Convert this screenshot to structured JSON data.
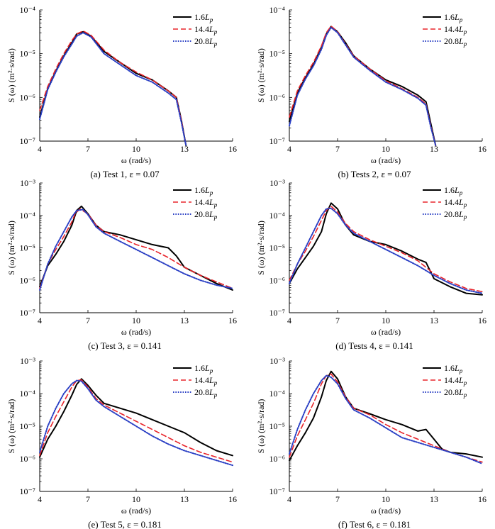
{
  "figure": {
    "axis_labels": {
      "ylabel": "S (ω) (m²·s/rad)",
      "xlabel": "ω (rad/s)"
    },
    "series_styles": [
      {
        "name": "1.6Lp",
        "color": "#000000",
        "dash": "",
        "width": 2.0
      },
      {
        "name": "14.4Lp",
        "color": "#e8232a",
        "dash": "7,4",
        "width": 1.6
      },
      {
        "name": "20.8Lp",
        "color": "#2a3fc4",
        "dash": "1.6,1.8",
        "width": 2.0
      }
    ]
  },
  "chart_data": [
    {
      "type": "line",
      "title": "(a) Test 1, ε = 0.07",
      "xlabel": "ω (rad/s)",
      "ylabel": "S (ω) (m²·s/rad)",
      "x_ticks": [
        4,
        7,
        10,
        13,
        16
      ],
      "x_tick_labels": [
        "4",
        "7",
        "10",
        "13",
        "16"
      ],
      "xlim": [
        4,
        16
      ],
      "ylim_exp": [
        -7,
        -4
      ],
      "y_tick_labels": [
        "10⁻⁷",
        "10⁻⁶",
        "10⁻⁵",
        "10⁻⁴"
      ],
      "legend": [
        "1.6Lp",
        "14.4Lp",
        "20.8Lp"
      ],
      "series": [
        {
          "name": "1.6Lp",
          "x": [
            4,
            4.5,
            5,
            5.5,
            6,
            6.3,
            6.7,
            7.2,
            8,
            9,
            10,
            11,
            12,
            12.5,
            12.8,
            13.1
          ],
          "log10_y": [
            -6.45,
            -5.8,
            -5.4,
            -5.05,
            -4.75,
            -4.55,
            -4.5,
            -4.6,
            -4.95,
            -5.2,
            -5.45,
            -5.6,
            -5.85,
            -6.0,
            -6.5,
            -7.1
          ]
        },
        {
          "name": "14.4Lp",
          "x": [
            4,
            4.5,
            5,
            5.5,
            6,
            6.3,
            6.7,
            7.2,
            8,
            9,
            10,
            11,
            12,
            12.5,
            12.8,
            13.1
          ],
          "log10_y": [
            -6.3,
            -5.75,
            -5.35,
            -5.0,
            -4.7,
            -4.55,
            -4.48,
            -4.58,
            -4.92,
            -5.2,
            -5.42,
            -5.6,
            -5.85,
            -6.0,
            -6.5,
            -7.1
          ]
        },
        {
          "name": "20.8Lp",
          "x": [
            4,
            4.5,
            5,
            5.5,
            6,
            6.3,
            6.7,
            7.2,
            8,
            9,
            10,
            11,
            12,
            12.5,
            12.8,
            13.1
          ],
          "log10_y": [
            -6.5,
            -5.82,
            -5.42,
            -5.07,
            -4.78,
            -4.6,
            -4.52,
            -4.62,
            -5.0,
            -5.25,
            -5.5,
            -5.65,
            -5.9,
            -6.05,
            -6.55,
            -7.1
          ]
        }
      ]
    },
    {
      "type": "line",
      "title": "(b) Tests 2, ε = 0.07",
      "xlabel": "ω (rad/s)",
      "ylabel": "S (ω) (m²·s/rad)",
      "x_ticks": [
        4,
        7,
        10,
        13,
        16
      ],
      "x_tick_labels": [
        "4",
        "7",
        "10",
        "13",
        "16"
      ],
      "xlim": [
        4,
        16
      ],
      "ylim_exp": [
        -7,
        -4
      ],
      "y_tick_labels": [
        "10⁻⁷",
        "10⁻⁶",
        "10⁻⁵",
        "10⁻⁴"
      ],
      "legend": [
        "1.6Lp",
        "14.4Lp",
        "20.8Lp"
      ],
      "series": [
        {
          "name": "1.6Lp",
          "x": [
            4,
            4.5,
            5,
            5.5,
            6,
            6.3,
            6.6,
            7,
            7.5,
            8,
            9,
            10,
            11,
            12,
            12.5,
            12.8,
            13.1
          ],
          "log10_y": [
            -6.55,
            -5.9,
            -5.55,
            -5.25,
            -4.85,
            -4.55,
            -4.38,
            -4.5,
            -4.75,
            -5.05,
            -5.35,
            -5.6,
            -5.75,
            -5.95,
            -6.1,
            -6.6,
            -7.1
          ]
        },
        {
          "name": "14.4Lp",
          "x": [
            4,
            4.5,
            5,
            5.5,
            6,
            6.3,
            6.6,
            7,
            7.5,
            8,
            9,
            10,
            11,
            12,
            12.5,
            12.8,
            13.1
          ],
          "log10_y": [
            -6.45,
            -5.85,
            -5.5,
            -5.2,
            -4.82,
            -4.52,
            -4.37,
            -4.5,
            -4.78,
            -5.05,
            -5.35,
            -5.62,
            -5.8,
            -6.0,
            -6.15,
            -6.65,
            -7.1
          ]
        },
        {
          "name": "20.8Lp",
          "x": [
            4,
            4.5,
            5,
            5.5,
            6,
            6.3,
            6.6,
            7,
            7.5,
            8,
            9,
            10,
            11,
            12,
            12.5,
            12.8,
            13.1
          ],
          "log10_y": [
            -6.65,
            -5.95,
            -5.58,
            -5.28,
            -4.9,
            -4.58,
            -4.4,
            -4.52,
            -4.8,
            -5.08,
            -5.38,
            -5.65,
            -5.82,
            -6.02,
            -6.18,
            -6.68,
            -7.1
          ]
        }
      ]
    },
    {
      "type": "line",
      "title": "(c) Test 3, ε = 0.141",
      "xlabel": "ω (rad/s)",
      "ylabel": "S (ω) (m²·s/rad)",
      "x_ticks": [
        4,
        7,
        10,
        13,
        16
      ],
      "x_tick_labels": [
        "4",
        "7",
        "10",
        "13",
        "16"
      ],
      "xlim": [
        4,
        16
      ],
      "ylim_exp": [
        -7,
        -3
      ],
      "y_tick_labels": [
        "10⁻⁷",
        "10⁻⁶",
        "10⁻⁵",
        "10⁻⁴",
        "10⁻³"
      ],
      "legend": [
        "1.6Lp",
        "14.4Lp",
        "20.8Lp"
      ],
      "series": [
        {
          "name": "1.6Lp",
          "x": [
            4,
            4.5,
            5,
            5.5,
            6,
            6.3,
            6.6,
            7,
            7.5,
            8,
            9,
            10,
            11,
            12,
            12.5,
            13,
            14,
            15,
            16
          ],
          "log10_y": [
            -6.2,
            -5.55,
            -5.2,
            -4.8,
            -4.3,
            -3.85,
            -3.72,
            -3.95,
            -4.3,
            -4.5,
            -4.6,
            -4.75,
            -4.9,
            -5.0,
            -5.25,
            -5.6,
            -5.85,
            -6.1,
            -6.3
          ]
        },
        {
          "name": "14.4Lp",
          "x": [
            4,
            4.5,
            5,
            5.5,
            6,
            6.2,
            6.5,
            7,
            7.5,
            8,
            9,
            10,
            11,
            12,
            13,
            14,
            15,
            16
          ],
          "log10_y": [
            -6.25,
            -5.5,
            -5.05,
            -4.65,
            -4.2,
            -3.95,
            -3.8,
            -3.95,
            -4.3,
            -4.5,
            -4.68,
            -4.9,
            -5.05,
            -5.3,
            -5.6,
            -5.85,
            -6.05,
            -6.25
          ]
        },
        {
          "name": "20.8Lp",
          "x": [
            4,
            4.5,
            5,
            5.5,
            6,
            6.3,
            6.7,
            7,
            7.5,
            8,
            9,
            10,
            11,
            12,
            13,
            14,
            15,
            16
          ],
          "log10_y": [
            -6.3,
            -5.5,
            -4.95,
            -4.5,
            -4.05,
            -3.85,
            -3.82,
            -3.98,
            -4.35,
            -4.55,
            -4.8,
            -5.05,
            -5.3,
            -5.55,
            -5.8,
            -6.0,
            -6.15,
            -6.25
          ]
        }
      ]
    },
    {
      "type": "line",
      "title": "(d) Tests 4, ε = 0.141",
      "xlabel": "ω (rad/s)",
      "ylabel": "S (ω) (m²·s/rad)",
      "x_ticks": [
        4,
        7,
        10,
        13,
        16
      ],
      "x_tick_labels": [
        "4",
        "7",
        "10",
        "13",
        "16"
      ],
      "xlim": [
        4,
        16
      ],
      "ylim_exp": [
        -7,
        -3
      ],
      "y_tick_labels": [
        "10⁻⁷",
        "10⁻⁶",
        "10⁻⁵",
        "10⁻⁴",
        "10⁻³"
      ],
      "legend": [
        "1.6Lp",
        "14.4Lp",
        "20.8Lp"
      ],
      "series": [
        {
          "name": "1.6Lp",
          "x": [
            4,
            4.5,
            5,
            5.5,
            6,
            6.3,
            6.6,
            7,
            7.5,
            8,
            9,
            10,
            11,
            12,
            12.5,
            13,
            14,
            15,
            16
          ],
          "log10_y": [
            -6.1,
            -5.65,
            -5.3,
            -4.95,
            -4.5,
            -3.95,
            -3.62,
            -3.8,
            -4.3,
            -4.6,
            -4.8,
            -4.9,
            -5.1,
            -5.35,
            -5.45,
            -5.95,
            -6.2,
            -6.4,
            -6.45
          ]
        },
        {
          "name": "14.4Lp",
          "x": [
            4,
            4.5,
            5,
            5.5,
            6,
            6.3,
            6.6,
            7,
            7.5,
            8,
            9,
            10,
            11,
            12,
            13,
            14,
            15,
            16
          ],
          "log10_y": [
            -6.0,
            -5.5,
            -5.1,
            -4.65,
            -4.15,
            -3.85,
            -3.72,
            -3.9,
            -4.25,
            -4.5,
            -4.75,
            -4.95,
            -5.15,
            -5.4,
            -5.8,
            -6.05,
            -6.25,
            -6.35
          ]
        },
        {
          "name": "20.8Lp",
          "x": [
            4,
            4.5,
            5,
            5.5,
            6,
            6.3,
            6.6,
            7,
            7.5,
            8,
            9,
            10,
            11,
            12,
            13,
            14,
            15,
            16
          ],
          "log10_y": [
            -6.1,
            -5.5,
            -5.0,
            -4.5,
            -4.0,
            -3.8,
            -3.78,
            -3.95,
            -4.3,
            -4.55,
            -4.8,
            -5.05,
            -5.3,
            -5.55,
            -5.85,
            -6.1,
            -6.3,
            -6.4
          ]
        }
      ]
    },
    {
      "type": "line",
      "title": "(e) Test 5, ε = 0.181",
      "xlabel": "ω (rad/s)",
      "ylabel": "S (ω) (m²·s/rad)",
      "x_ticks": [
        4,
        7,
        10,
        13,
        16
      ],
      "x_tick_labels": [
        "4",
        "7",
        "10",
        "13",
        "16"
      ],
      "xlim": [
        4,
        16
      ],
      "ylim_exp": [
        -7,
        -3
      ],
      "y_tick_labels": [
        "10⁻⁷",
        "10⁻⁶",
        "10⁻⁵",
        "10⁻⁴",
        "10⁻³"
      ],
      "legend": [
        "1.6Lp",
        "14.4Lp",
        "20.8Lp"
      ],
      "series": [
        {
          "name": "1.6Lp",
          "x": [
            4,
            4.5,
            5,
            5.5,
            6,
            6.3,
            6.6,
            7,
            7.5,
            8,
            9,
            10,
            11,
            12,
            13,
            14,
            15,
            16
          ],
          "log10_y": [
            -5.95,
            -5.4,
            -5.0,
            -4.55,
            -4.05,
            -3.72,
            -3.55,
            -3.75,
            -4.05,
            -4.3,
            -4.45,
            -4.6,
            -4.8,
            -5.0,
            -5.2,
            -5.5,
            -5.75,
            -5.9
          ]
        },
        {
          "name": "14.4Lp",
          "x": [
            4,
            4.5,
            5,
            5.5,
            6,
            6.3,
            6.6,
            7,
            7.5,
            8,
            9,
            10,
            11,
            12,
            13,
            14,
            15,
            16
          ],
          "log10_y": [
            -5.9,
            -5.2,
            -4.7,
            -4.25,
            -3.8,
            -3.6,
            -3.58,
            -3.8,
            -4.15,
            -4.35,
            -4.6,
            -4.85,
            -5.1,
            -5.35,
            -5.6,
            -5.8,
            -5.95,
            -6.1
          ]
        },
        {
          "name": "20.8Lp",
          "x": [
            4,
            4.5,
            5,
            5.5,
            6,
            6.3,
            6.6,
            7,
            7.5,
            8,
            9,
            10,
            11,
            12,
            13,
            14,
            15,
            16
          ],
          "log10_y": [
            -5.8,
            -5.0,
            -4.45,
            -4.0,
            -3.7,
            -3.6,
            -3.62,
            -3.85,
            -4.2,
            -4.4,
            -4.7,
            -5.0,
            -5.3,
            -5.55,
            -5.75,
            -5.9,
            -6.05,
            -6.2
          ]
        }
      ]
    },
    {
      "type": "line",
      "title": "(f) Test 6, ε = 0.181",
      "xlabel": "ω (rad/s)",
      "ylabel": "S (ω) (m²·s/rad)",
      "x_ticks": [
        4,
        7,
        10,
        13,
        16
      ],
      "x_tick_labels": [
        "4",
        "7",
        "10",
        "13",
        "16"
      ],
      "xlim": [
        4,
        16
      ],
      "ylim_exp": [
        -7,
        -3
      ],
      "y_tick_labels": [
        "10⁻⁷",
        "10⁻⁶",
        "10⁻⁵",
        "10⁻⁴",
        "10⁻³"
      ],
      "legend": [
        "1.6Lp",
        "14.4Lp",
        "20.8Lp"
      ],
      "series": [
        {
          "name": "1.6Lp",
          "x": [
            4,
            4.5,
            5,
            5.5,
            6,
            6.3,
            6.6,
            7,
            7.5,
            8,
            9,
            10,
            11,
            12,
            12.5,
            13,
            13.5,
            14,
            15,
            16
          ],
          "log10_y": [
            -6.05,
            -5.6,
            -5.2,
            -4.75,
            -4.1,
            -3.6,
            -3.32,
            -3.55,
            -4.1,
            -4.45,
            -4.62,
            -4.8,
            -4.95,
            -5.15,
            -5.1,
            -5.4,
            -5.7,
            -5.8,
            -5.85,
            -5.95
          ]
        },
        {
          "name": "14.4Lp",
          "x": [
            4,
            4.5,
            5,
            5.5,
            6,
            6.3,
            6.6,
            7,
            7.5,
            8,
            9,
            10,
            11,
            12,
            13,
            14,
            15,
            16
          ],
          "log10_y": [
            -5.95,
            -5.3,
            -4.8,
            -4.3,
            -3.7,
            -3.45,
            -3.4,
            -3.65,
            -4.1,
            -4.45,
            -4.65,
            -4.95,
            -5.2,
            -5.4,
            -5.6,
            -5.8,
            -5.95,
            -6.1
          ]
        },
        {
          "name": "20.8Lp",
          "x": [
            4,
            4.5,
            5,
            5.5,
            6,
            6.3,
            6.6,
            7,
            7.5,
            8,
            9,
            10,
            11,
            12,
            13,
            14,
            15,
            16
          ],
          "log10_y": [
            -5.85,
            -5.1,
            -4.5,
            -4.0,
            -3.6,
            -3.45,
            -3.5,
            -3.7,
            -4.15,
            -4.5,
            -4.75,
            -5.05,
            -5.35,
            -5.5,
            -5.65,
            -5.8,
            -5.95,
            -6.15
          ]
        }
      ]
    }
  ]
}
